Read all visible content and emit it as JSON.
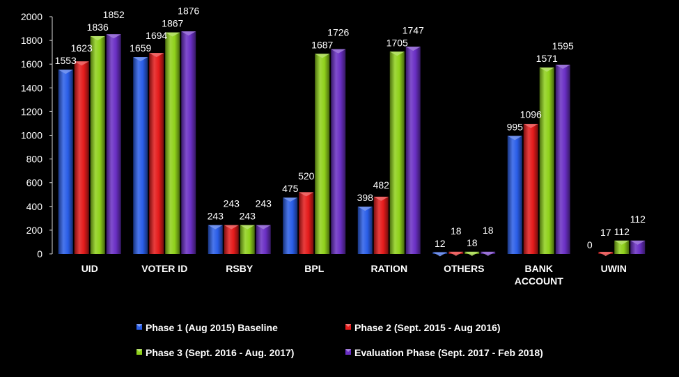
{
  "chart_data": {
    "type": "bar",
    "title": "",
    "xlabel": "",
    "ylabel": "",
    "ylim": [
      0,
      2000
    ],
    "yticks": [
      0,
      200,
      400,
      600,
      800,
      1000,
      1200,
      1400,
      1600,
      1800,
      2000
    ],
    "grid": false,
    "legend_position": "bottom",
    "categories": [
      [
        "UID"
      ],
      [
        "VOTER ID"
      ],
      [
        "RSBY"
      ],
      [
        "BPL"
      ],
      [
        "RATION"
      ],
      [
        "OTHERS"
      ],
      [
        "BANK",
        "ACCOUNT"
      ],
      [
        "UWIN"
      ]
    ],
    "series": [
      {
        "name": "Phase 1 (Aug 2015) Baseline",
        "color": "#2a5ee8",
        "values": [
          1553,
          1659,
          243,
          475,
          398,
          12,
          995,
          0
        ]
      },
      {
        "name": "Phase 2 (Sept. 2015 - Aug 2016)",
        "color": "#e51b1b",
        "values": [
          1623,
          1694,
          243,
          520,
          482,
          18,
          1096,
          17
        ]
      },
      {
        "name": "Phase 3 (Sept. 2016 - Aug. 2017)",
        "color": "#8fd11b",
        "values": [
          1836,
          1867,
          243,
          1687,
          1705,
          18,
          1571,
          112
        ]
      },
      {
        "name": "Evaluation Phase (Sept. 2017 - Feb 2018)",
        "color": "#6a2fc4",
        "values": [
          1852,
          1876,
          243,
          1726,
          1747,
          18,
          1595,
          112
        ]
      }
    ]
  }
}
